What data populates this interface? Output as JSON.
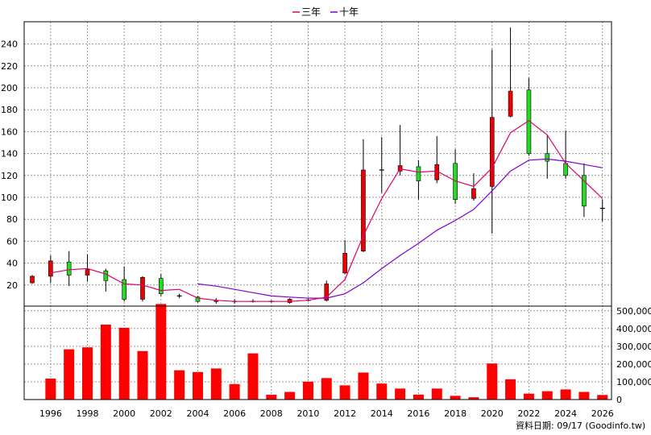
{
  "chart_data": {
    "type": "candlestick+bar",
    "legend": [
      {
        "name": "三年",
        "color": "#e0006a"
      },
      {
        "name": "十年",
        "color": "#8000d0"
      }
    ],
    "years": [
      1995,
      1996,
      1997,
      1998,
      1999,
      2000,
      2001,
      2002,
      2003,
      2004,
      2005,
      2006,
      2007,
      2008,
      2009,
      2010,
      2011,
      2012,
      2013,
      2014,
      2015,
      2016,
      2017,
      2018,
      2019,
      2020,
      2021,
      2022,
      2023,
      2024,
      2025,
      2026
    ],
    "price_yticks": [
      20,
      40,
      60,
      80,
      100,
      120,
      140,
      160,
      180,
      200,
      220,
      240
    ],
    "volume_yticks": [
      0,
      100000,
      200000,
      300000,
      400000,
      500000
    ],
    "volume_ytick_labels": [
      "0",
      "100,000",
      "200,000",
      "300,000",
      "400,000",
      "500,000"
    ],
    "xtick_labels": [
      "1996",
      "1998",
      "2000",
      "2002",
      "2004",
      "2006",
      "2008",
      "2010",
      "2012",
      "2014",
      "2016",
      "2018",
      "2020",
      "2022",
      "2024",
      "2026"
    ],
    "candles": [
      {
        "year": 1995,
        "open": 22,
        "close": 28,
        "high": 29,
        "low": 21,
        "color": "red"
      },
      {
        "year": 1996,
        "open": 28,
        "close": 42,
        "high": 47,
        "low": 22,
        "color": "red"
      },
      {
        "year": 1997,
        "open": 41,
        "close": 29,
        "high": 51,
        "low": 19,
        "color": "green"
      },
      {
        "year": 1998,
        "open": 29,
        "close": 34,
        "high": 48,
        "low": 23,
        "color": "red"
      },
      {
        "year": 1999,
        "open": 33,
        "close": 24,
        "high": 35,
        "low": 14,
        "color": "green"
      },
      {
        "year": 2000,
        "open": 25,
        "close": 7,
        "high": 37,
        "low": 5,
        "color": "green"
      },
      {
        "year": 2001,
        "open": 7,
        "close": 27,
        "high": 28,
        "low": 5,
        "color": "red"
      },
      {
        "year": 2002,
        "open": 26,
        "close": 12,
        "high": 30,
        "low": 10,
        "color": "green"
      },
      {
        "year": 2003,
        "open": 10,
        "close": 10,
        "high": 12,
        "low": 8,
        "color": "flat"
      },
      {
        "year": 2004,
        "open": 9,
        "close": 5,
        "high": 10,
        "low": 4,
        "color": "green"
      },
      {
        "year": 2005,
        "open": 5,
        "close": 6,
        "high": 8,
        "low": 3,
        "color": "red"
      },
      {
        "year": 2006,
        "open": 5,
        "close": 5,
        "high": 7,
        "low": 3,
        "color": "flat"
      },
      {
        "year": 2007,
        "open": 5,
        "close": 5,
        "high": 7,
        "low": 4,
        "color": "flat"
      },
      {
        "year": 2008,
        "open": 5,
        "close": 5,
        "high": 6,
        "low": 4,
        "color": "flat"
      },
      {
        "year": 2009,
        "open": 4,
        "close": 7,
        "high": 8,
        "low": 3,
        "color": "red"
      },
      {
        "year": 2010,
        "open": 6,
        "close": 6,
        "high": 8,
        "low": 5,
        "color": "flat"
      },
      {
        "year": 2011,
        "open": 6,
        "close": 21,
        "high": 24,
        "low": 5,
        "color": "red"
      },
      {
        "year": 2012,
        "open": 31,
        "close": 49,
        "high": 61,
        "low": 30,
        "color": "red"
      },
      {
        "year": 2013,
        "open": 51,
        "close": 125,
        "high": 153,
        "low": 50,
        "color": "red"
      },
      {
        "year": 2014,
        "open": 125,
        "close": 125,
        "high": 155,
        "low": 104,
        "color": "flat"
      },
      {
        "year": 2015,
        "open": 124,
        "close": 129,
        "high": 166,
        "low": 120,
        "color": "red"
      },
      {
        "year": 2016,
        "open": 128,
        "close": 115,
        "high": 134,
        "low": 98,
        "color": "green"
      },
      {
        "year": 2017,
        "open": 116,
        "close": 130,
        "high": 156,
        "low": 113,
        "color": "red"
      },
      {
        "year": 2018,
        "open": 131,
        "close": 98,
        "high": 144,
        "low": 94,
        "color": "green"
      },
      {
        "year": 2019,
        "open": 99,
        "close": 108,
        "high": 122,
        "low": 97,
        "color": "red"
      },
      {
        "year": 2020,
        "open": 110,
        "close": 173,
        "high": 235,
        "low": 67,
        "color": "red"
      },
      {
        "year": 2021,
        "open": 174,
        "close": 197,
        "high": 255,
        "low": 173,
        "color": "red"
      },
      {
        "year": 2022,
        "open": 198,
        "close": 140,
        "high": 209,
        "low": 138,
        "color": "green"
      },
      {
        "year": 2023,
        "open": 140,
        "close": 133,
        "high": 157,
        "low": 117,
        "color": "green"
      },
      {
        "year": 2024,
        "open": 131,
        "close": 120,
        "high": 161,
        "low": 117,
        "color": "green"
      },
      {
        "year": 2025,
        "open": 120,
        "close": 92,
        "high": 131,
        "low": 82,
        "color": "green"
      },
      {
        "year": 2026,
        "open": 90,
        "close": 90,
        "high": 98,
        "low": 78,
        "color": "flat"
      }
    ],
    "ma3": [
      {
        "year": 1996,
        "value": 31
      },
      {
        "year": 1997,
        "value": 34
      },
      {
        "year": 1998,
        "value": 35
      },
      {
        "year": 1999,
        "value": 30
      },
      {
        "year": 2000,
        "value": 21
      },
      {
        "year": 2001,
        "value": 20
      },
      {
        "year": 2002,
        "value": 15
      },
      {
        "year": 2003,
        "value": 16
      },
      {
        "year": 2004,
        "value": 8
      },
      {
        "year": 2005,
        "value": 6
      },
      {
        "year": 2006,
        "value": 5
      },
      {
        "year": 2007,
        "value": 5
      },
      {
        "year": 2008,
        "value": 5
      },
      {
        "year": 2009,
        "value": 5
      },
      {
        "year": 2010,
        "value": 6
      },
      {
        "year": 2011,
        "value": 9
      },
      {
        "year": 2012,
        "value": 25
      },
      {
        "year": 2013,
        "value": 65
      },
      {
        "year": 2014,
        "value": 99
      },
      {
        "year": 2015,
        "value": 126
      },
      {
        "year": 2016,
        "value": 123
      },
      {
        "year": 2017,
        "value": 124
      },
      {
        "year": 2018,
        "value": 115
      },
      {
        "year": 2019,
        "value": 110
      },
      {
        "year": 2020,
        "value": 127
      },
      {
        "year": 2021,
        "value": 159
      },
      {
        "year": 2022,
        "value": 170
      },
      {
        "year": 2023,
        "value": 157
      },
      {
        "year": 2024,
        "value": 131
      },
      {
        "year": 2025,
        "value": 115
      },
      {
        "year": 2026,
        "value": 99
      }
    ],
    "ma10": [
      {
        "year": 2004,
        "value": 21
      },
      {
        "year": 2005,
        "value": 19
      },
      {
        "year": 2006,
        "value": 16
      },
      {
        "year": 2007,
        "value": 13
      },
      {
        "year": 2008,
        "value": 10
      },
      {
        "year": 2009,
        "value": 9
      },
      {
        "year": 2010,
        "value": 8
      },
      {
        "year": 2011,
        "value": 8
      },
      {
        "year": 2012,
        "value": 12
      },
      {
        "year": 2013,
        "value": 22
      },
      {
        "year": 2014,
        "value": 35
      },
      {
        "year": 2015,
        "value": 47
      },
      {
        "year": 2016,
        "value": 58
      },
      {
        "year": 2017,
        "value": 70
      },
      {
        "year": 2018,
        "value": 79
      },
      {
        "year": 2019,
        "value": 89
      },
      {
        "year": 2020,
        "value": 106
      },
      {
        "year": 2021,
        "value": 124
      },
      {
        "year": 2022,
        "value": 134
      },
      {
        "year": 2023,
        "value": 135
      },
      {
        "year": 2024,
        "value": 133
      },
      {
        "year": 2025,
        "value": 130
      },
      {
        "year": 2026,
        "value": 127
      }
    ],
    "volume": [
      {
        "year": 1995,
        "value": 0
      },
      {
        "year": 1996,
        "value": 118000
      },
      {
        "year": 1997,
        "value": 283000
      },
      {
        "year": 1998,
        "value": 294000
      },
      {
        "year": 1999,
        "value": 422000
      },
      {
        "year": 2000,
        "value": 404000
      },
      {
        "year": 2001,
        "value": 273000
      },
      {
        "year": 2002,
        "value": 538000
      },
      {
        "year": 2003,
        "value": 165000
      },
      {
        "year": 2004,
        "value": 155000
      },
      {
        "year": 2005,
        "value": 175000
      },
      {
        "year": 2006,
        "value": 87000
      },
      {
        "year": 2007,
        "value": 260000
      },
      {
        "year": 2008,
        "value": 27000
      },
      {
        "year": 2009,
        "value": 43000
      },
      {
        "year": 2010,
        "value": 101000
      },
      {
        "year": 2011,
        "value": 121000
      },
      {
        "year": 2012,
        "value": 80000
      },
      {
        "year": 2013,
        "value": 152000
      },
      {
        "year": 2014,
        "value": 90000
      },
      {
        "year": 2015,
        "value": 62000
      },
      {
        "year": 2016,
        "value": 28000
      },
      {
        "year": 2017,
        "value": 62000
      },
      {
        "year": 2018,
        "value": 21000
      },
      {
        "year": 2019,
        "value": 13000
      },
      {
        "year": 2020,
        "value": 203000
      },
      {
        "year": 2021,
        "value": 114000
      },
      {
        "year": 2022,
        "value": 33000
      },
      {
        "year": 2023,
        "value": 47000
      },
      {
        "year": 2024,
        "value": 57000
      },
      {
        "year": 2025,
        "value": 43000
      },
      {
        "year": 2026,
        "value": 26000
      }
    ],
    "price_ylim": [
      0,
      260
    ],
    "volume_ylim": [
      0,
      520000
    ],
    "grid": true,
    "colors": {
      "up": "#ee0000",
      "down": "#22dd22",
      "volume": "#ff0000",
      "wick": "#000000",
      "grid": "#999999"
    }
  },
  "footer": "資料日期: 09/17  (Goodinfo.tw)"
}
